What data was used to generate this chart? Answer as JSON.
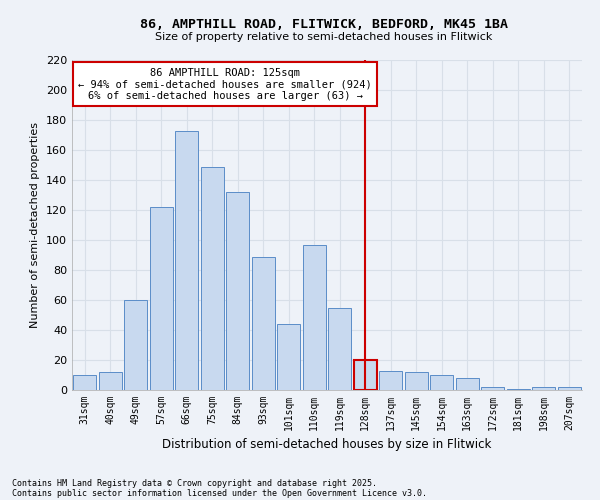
{
  "title": "86, AMPTHILL ROAD, FLITWICK, BEDFORD, MK45 1BA",
  "subtitle": "Size of property relative to semi-detached houses in Flitwick",
  "xlabel": "Distribution of semi-detached houses by size in Flitwick",
  "ylabel": "Number of semi-detached properties",
  "categories": [
    "31sqm",
    "40sqm",
    "49sqm",
    "57sqm",
    "66sqm",
    "75sqm",
    "84sqm",
    "93sqm",
    "101sqm",
    "110sqm",
    "119sqm",
    "128sqm",
    "137sqm",
    "145sqm",
    "154sqm",
    "163sqm",
    "172sqm",
    "181sqm",
    "198sqm",
    "207sqm"
  ],
  "values": [
    10,
    12,
    60,
    122,
    173,
    149,
    132,
    89,
    44,
    97,
    55,
    20,
    13,
    12,
    10,
    8,
    2,
    1,
    2,
    2
  ],
  "bar_color": "#c8d9ef",
  "bar_edge_color": "#5b8dc8",
  "highlight_index": 11,
  "highlight_bar_edge_color": "#cc0000",
  "vline_color": "#cc0000",
  "annotation_title": "86 AMPTHILL ROAD: 125sqm",
  "annotation_line1": "← 94% of semi-detached houses are smaller (924)",
  "annotation_line2": "6% of semi-detached houses are larger (63) →",
  "annotation_box_facecolor": "#ffffff",
  "annotation_box_edgecolor": "#cc0000",
  "footnote1": "Contains HM Land Registry data © Crown copyright and database right 2025.",
  "footnote2": "Contains public sector information licensed under the Open Government Licence v3.0.",
  "ylim": [
    0,
    220
  ],
  "yticks": [
    0,
    20,
    40,
    60,
    80,
    100,
    120,
    140,
    160,
    180,
    200,
    220
  ],
  "bg_color": "#eef2f8",
  "grid_color": "#d8dfe8"
}
